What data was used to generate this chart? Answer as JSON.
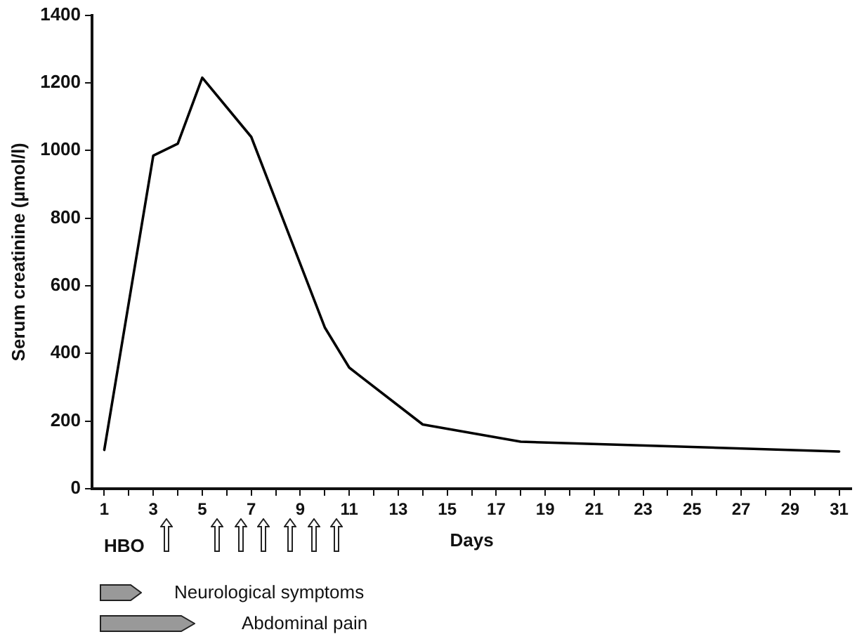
{
  "chart_data": {
    "type": "line",
    "xlabel": "Days",
    "ylabel": "Serum creatinine (µmol/l)",
    "x": [
      1,
      3,
      4,
      5,
      7,
      10,
      11,
      14,
      18,
      31
    ],
    "series": [
      {
        "color": "#000000",
        "values": [
          115,
          985,
          1020,
          1215,
          1040,
          477,
          358,
          190,
          139,
          110
        ]
      }
    ],
    "xlim": [
      0.5,
      31.5
    ],
    "xticks": [
      1,
      {
        "value": 2,
        "label": null
      },
      3,
      {
        "value": 4,
        "label": null
      },
      5,
      {
        "value": 6,
        "label": null
      },
      7,
      {
        "value": 8,
        "label": null
      },
      9,
      {
        "value": 10,
        "label": null
      },
      11,
      {
        "value": 12,
        "label": null
      },
      13,
      {
        "value": 14,
        "label": null
      },
      15,
      {
        "value": 16,
        "label": null
      },
      17,
      {
        "value": 18,
        "label": null
      },
      19,
      {
        "value": 20,
        "label": null
      },
      21,
      {
        "value": 22,
        "label": null
      },
      23,
      {
        "value": 24,
        "label": null
      },
      25,
      {
        "value": 26,
        "label": null
      },
      27,
      {
        "value": 28,
        "label": null
      },
      29,
      {
        "value": 30,
        "label": null
      },
      31
    ],
    "ylim": [
      0,
      1400
    ],
    "yticks": [
      0,
      200,
      400,
      600,
      800,
      1000,
      1200,
      1400
    ],
    "grid": false,
    "legend": false,
    "marker": "none",
    "line_style": "solid",
    "annotations": [
      "HBO",
      "Neurological symptoms",
      "Abdominal pain"
    ]
  }
}
